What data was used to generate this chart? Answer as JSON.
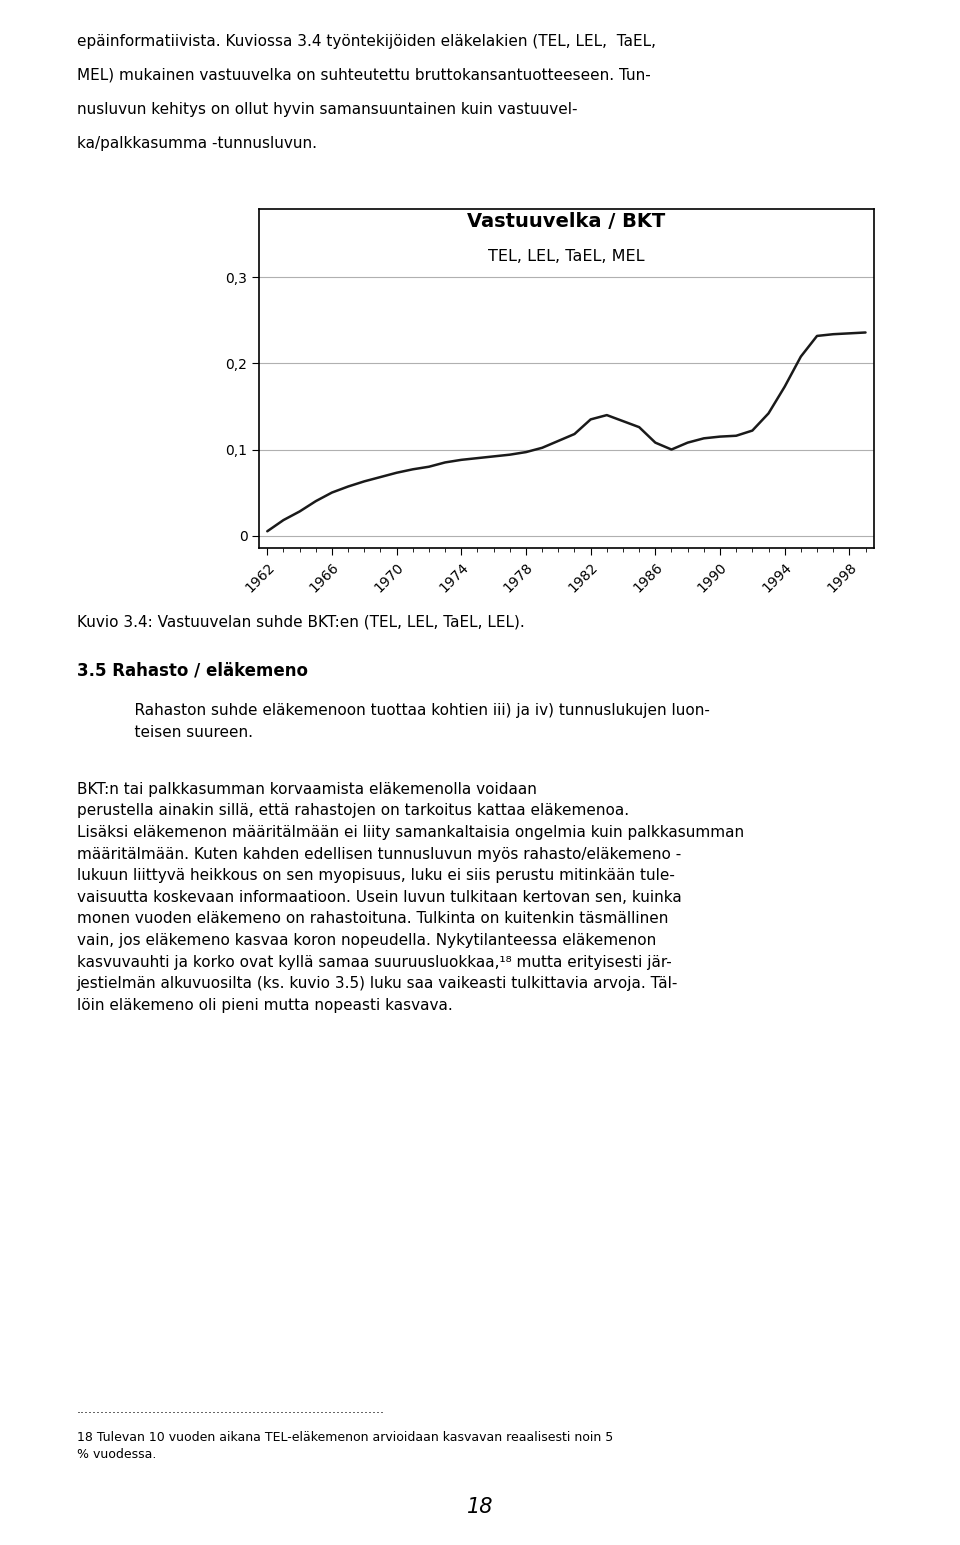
{
  "page_width": 9.6,
  "page_height": 15.45,
  "bg_color": "#ffffff",
  "top_text_lines": [
    "epäinformatiivista. Kuviossa 3.4 työntekijöiden eläkelakien (TEL, LEL,  TaEL,",
    "MEL) mukainen vastuuvelka on suhteutettu bruttokansantuotteeseen. Tun-",
    "nusluvun kehitys on ollut hyvin samansuuntainen kuin vastuuvel-",
    "ka/palkkasumma -tunnusluvun."
  ],
  "chart_title_line1": "Vastuuvelka / BKT",
  "chart_title_line2": "TEL, LEL, TaEL, MEL",
  "chart_ylabel_ticks": [
    0.0,
    0.1,
    0.2,
    0.3
  ],
  "chart_ylabel_labels": [
    "0",
    "0,1",
    "0,2",
    "0,3"
  ],
  "chart_xlim": [
    1961.5,
    1999.5
  ],
  "chart_ylim": [
    -0.015,
    0.38
  ],
  "chart_xtick_years": [
    1962,
    1966,
    1970,
    1974,
    1978,
    1982,
    1986,
    1990,
    1994,
    1998
  ],
  "years": [
    1962,
    1963,
    1964,
    1965,
    1966,
    1967,
    1968,
    1969,
    1970,
    1971,
    1972,
    1973,
    1974,
    1975,
    1976,
    1977,
    1978,
    1979,
    1980,
    1981,
    1982,
    1983,
    1984,
    1985,
    1986,
    1987,
    1988,
    1989,
    1990,
    1991,
    1992,
    1993,
    1994,
    1995,
    1996,
    1997,
    1998,
    1999
  ],
  "values": [
    0.005,
    0.018,
    0.028,
    0.04,
    0.05,
    0.057,
    0.063,
    0.068,
    0.073,
    0.077,
    0.08,
    0.085,
    0.088,
    0.09,
    0.092,
    0.094,
    0.097,
    0.102,
    0.11,
    0.118,
    0.135,
    0.14,
    0.133,
    0.126,
    0.108,
    0.1,
    0.108,
    0.113,
    0.115,
    0.116,
    0.122,
    0.142,
    0.173,
    0.208,
    0.232,
    0.234,
    0.235,
    0.236
  ],
  "caption_text": "Kuvio 3.4: Vastuuvelan suhde BKT:en (TEL, LEL, TaEL, LEL).",
  "section_heading": "3.5 Rahasto / eläkemeno",
  "body_text1": "    Rahaston suhde eläkemenoon tuottaa kohtien iii) ja iv) tunnuslukujen luon-\n    teisen suureen.",
  "body_text2": "BKT:n tai palkkasumman korvaamista eläkemenolla voidaan\nperustella ainakin sillä, että rahastojen on tarkoitus kattaa eläkemenoa.\nLisäksi eläkemenon määritälmään ei liity samankaltaisia ongelmia kuin palkkasumman\nmääritälmään. Kuten kahden edellisen tunnusluvun myös rahasto/eläkemeno -\nlukuun liittyvä heikkous on sen myopisuus, luku ei siis perustu mitinkään tule-\nvaisuutta koskevaan informaatioon. Usein luvun tulkitaan kertovan sen, kuinka\nmonen vuoden eläkemeno on rahastoituna. Tulkinta on kuitenkin täsmällinen\nvain, jos eläkemeno kasvaa koron nopeudella. Nykytilanteessa eläkemenon\nkasvuvauhti ja korko ovat kyllä samaa suuruusluokkaa,¹⁸ mutta erityisesti jär-\njestielmän alkuvuosilta (ks. kuvio 3.5) luku saa vaikeasti tulkittavia arvoja. Täl-\nlöin eläkemeno oli pieni mutta nopeasti kasvava.",
  "dotted_line": ".............................................................................",
  "footnote_number": "18",
  "footnote_text": " Tulevan 10 vuoden aikana TEL-eläkemenon arvioidaan kasvavan reaalisesti noin 5\n% vuodessa.",
  "page_number": "18",
  "line_color": "#1a1a1a",
  "grid_color": "#b0b0b0",
  "text_color": "#000000",
  "title_fontsize": 14,
  "subtitle_fontsize": 11.5,
  "body_fontsize": 11,
  "tick_fontsize": 10,
  "caption_fontsize": 11
}
